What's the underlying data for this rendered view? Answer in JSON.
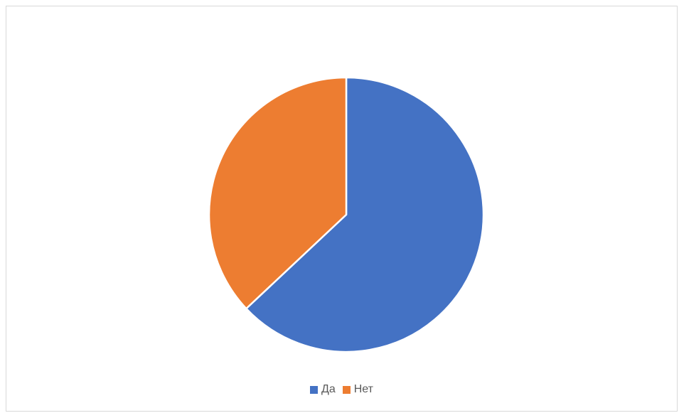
{
  "chart_data": {
    "type": "pie",
    "categories": [
      "Да",
      "Нет"
    ],
    "values": [
      63,
      37
    ],
    "colors": [
      "#4472C4",
      "#ED7D31"
    ],
    "title": "",
    "legend": "bottom",
    "start_angle": "12 o'clock",
    "direction": "clockwise"
  }
}
